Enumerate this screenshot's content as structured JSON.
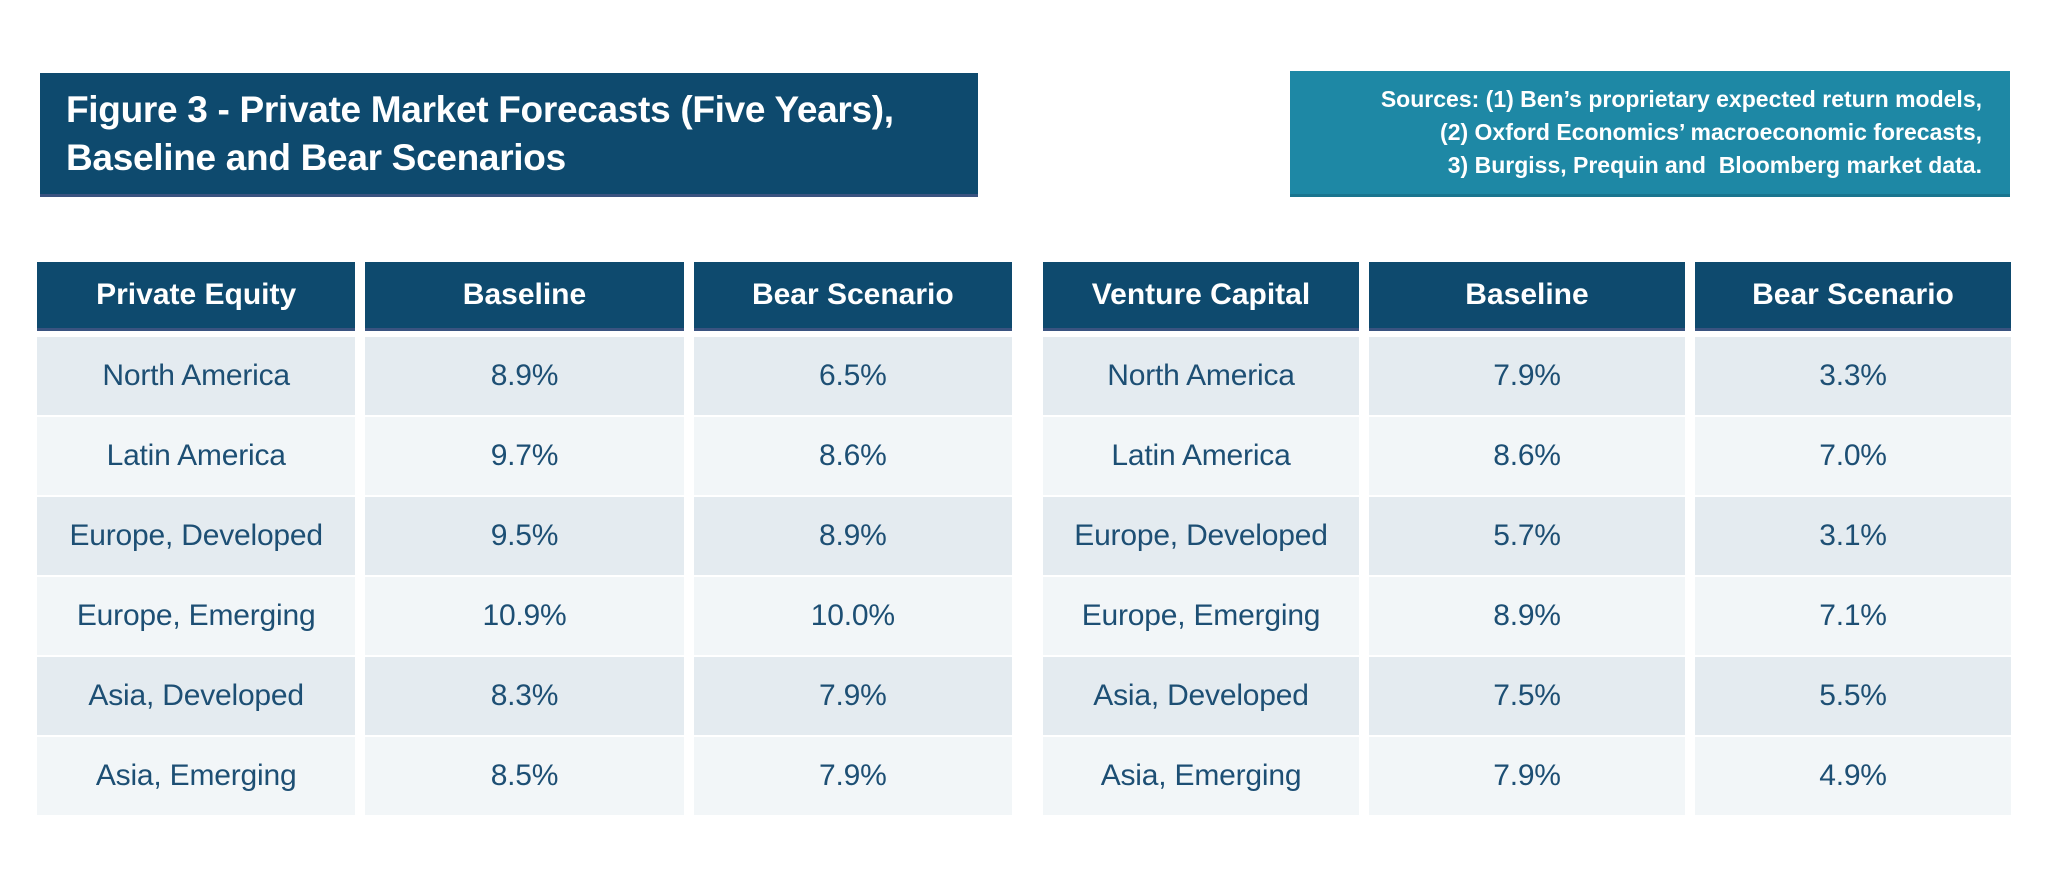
{
  "figure": {
    "title_line1": "Figure 3 - Private Market Forecasts (Five Years),",
    "title_line2": "Baseline and Bear Scenarios"
  },
  "sources": {
    "line1": "Sources: (1) Ben’s proprietary expected return models,",
    "line2": "(2) Oxford Economics’ macroeconomic forecasts,",
    "line3": "3) Burgiss, Prequin and  Bloomberg market data."
  },
  "colors": {
    "header_navy": "#0e4a6e",
    "header_border": "#3a5380",
    "sources_teal": "#1e88a5",
    "sources_border": "#1a758f",
    "row_odd": "#e4ebf0",
    "row_even": "#f2f6f8",
    "cell_text": "#1d4f74"
  },
  "chart_data": [
    {
      "type": "table",
      "title": "Private Equity",
      "columns": [
        "Private Equity",
        "Baseline",
        "Bear Scenario"
      ],
      "rows": [
        [
          "North America",
          "8.9%",
          "6.5%"
        ],
        [
          "Latin America",
          "9.7%",
          "8.6%"
        ],
        [
          "Europe, Developed",
          "9.5%",
          "8.9%"
        ],
        [
          "Europe, Emerging",
          "10.9%",
          "10.0%"
        ],
        [
          "Asia, Developed",
          "8.3%",
          "7.9%"
        ],
        [
          "Asia, Emerging",
          "8.5%",
          "7.9%"
        ]
      ]
    },
    {
      "type": "table",
      "title": "Venture Capital",
      "columns": [
        "Venture Capital",
        "Baseline",
        "Bear Scenario"
      ],
      "rows": [
        [
          "North America",
          "7.9%",
          "3.3%"
        ],
        [
          "Latin America",
          "8.6%",
          "7.0%"
        ],
        [
          "Europe, Developed",
          "5.7%",
          "3.1%"
        ],
        [
          "Europe, Emerging",
          "8.9%",
          "7.1%"
        ],
        [
          "Asia, Developed",
          "7.5%",
          "5.5%"
        ],
        [
          "Asia, Emerging",
          "7.9%",
          "4.9%"
        ]
      ]
    }
  ]
}
